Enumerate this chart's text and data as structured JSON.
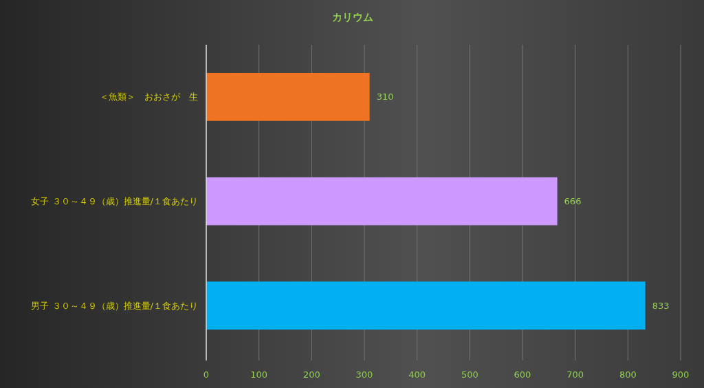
{
  "chart_data": {
    "type": "bar",
    "orientation": "horizontal",
    "title": "カリウム",
    "categories": [
      "＜魚類＞　おおさが　生",
      "女子 ３０～４９（歳）推進量/１食あたり",
      "男子 ３０～４９（歳）推進量/１食あたり"
    ],
    "values": [
      310,
      666,
      833
    ],
    "colors": [
      "#ee7424",
      "#cc99ff",
      "#00b0f0"
    ],
    "xlim": [
      0,
      900
    ],
    "xticks": [
      0,
      100,
      200,
      300,
      400,
      500,
      600,
      700,
      800,
      900
    ],
    "grid": "x",
    "data_labels": true
  }
}
